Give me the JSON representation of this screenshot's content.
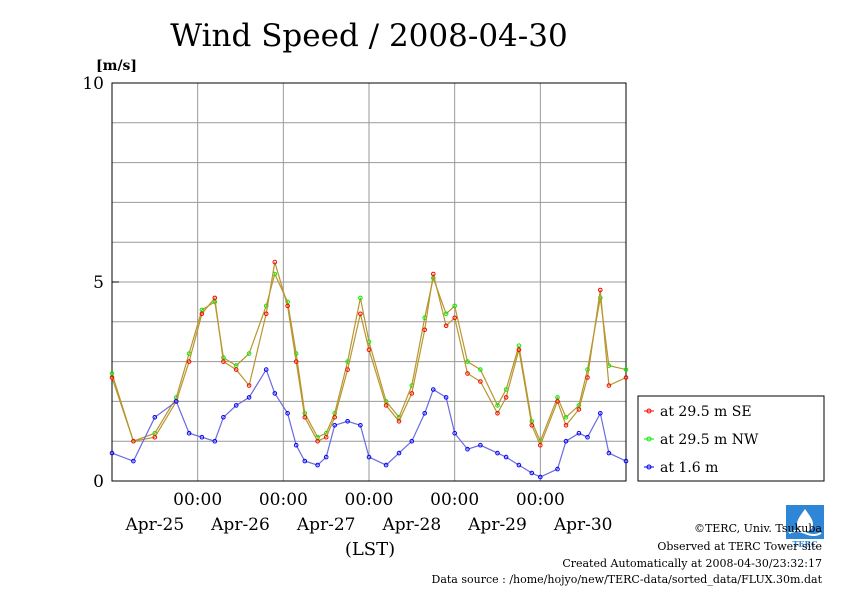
{
  "page": {
    "credit_line1": "©TERC, Univ. Tsukuba",
    "credit_line2": "Observed at TERC Tower site",
    "credit_line3": "Created Automatically at 2008-04-30/23:32:17",
    "credit_line4": "Data source : /home/hojyo/new/TERC-data/sorted_data/FLUX.30m.dat",
    "logo_text": "TERC"
  },
  "chart_data": {
    "type": "line",
    "title": "Wind Speed / 2008-04-30",
    "ylabel": "[m/s]",
    "xlabel": "(LST)",
    "ylim": [
      0,
      10
    ],
    "yticks": [
      "0",
      "5",
      "10"
    ],
    "xlim": [
      0,
      6
    ],
    "x_time_labels": [
      "00:00",
      "00:00",
      "00:00",
      "00:00",
      "00:00"
    ],
    "x_date_labels": [
      "Apr-25",
      "Apr-26",
      "Apr-27",
      "Apr-28",
      "Apr-29",
      "Apr-30"
    ],
    "grid": true,
    "legend_position": "right",
    "x_unit": "days from Apr-25 00:00 (LST)",
    "series": [
      {
        "name": "at 29.5 m SE",
        "color": "#ff0000",
        "x": [
          0,
          0.25,
          0.5,
          0.75,
          0.9,
          1.05,
          1.2,
          1.3,
          1.45,
          1.6,
          1.8,
          1.9,
          2.05,
          2.15,
          2.25,
          2.4,
          2.5,
          2.6,
          2.75,
          2.9,
          3.0,
          3.2,
          3.35,
          3.5,
          3.65,
          3.75,
          3.9,
          4.0,
          4.15,
          4.3,
          4.5,
          4.6,
          4.75,
          4.9,
          5.0,
          5.2,
          5.3,
          5.45,
          5.55,
          5.7,
          5.8,
          6.0
        ],
        "y": [
          2.6,
          1.0,
          1.1,
          2.0,
          3.0,
          4.2,
          4.6,
          3.0,
          2.8,
          2.4,
          4.2,
          5.5,
          4.4,
          3.0,
          1.6,
          1.0,
          1.1,
          1.6,
          2.8,
          4.2,
          3.3,
          1.9,
          1.5,
          2.2,
          3.8,
          5.2,
          3.9,
          4.1,
          2.7,
          2.5,
          1.7,
          2.1,
          3.3,
          1.4,
          0.9,
          2.0,
          1.4,
          1.8,
          2.6,
          4.8,
          2.4,
          2.6
        ]
      },
      {
        "name": "at 29.5 m NW",
        "color": "#00ee00",
        "x": [
          0,
          0.25,
          0.5,
          0.75,
          0.9,
          1.05,
          1.2,
          1.3,
          1.45,
          1.6,
          1.8,
          1.9,
          2.05,
          2.15,
          2.25,
          2.4,
          2.5,
          2.6,
          2.75,
          2.9,
          3.0,
          3.2,
          3.35,
          3.5,
          3.65,
          3.75,
          3.9,
          4.0,
          4.15,
          4.3,
          4.5,
          4.6,
          4.75,
          4.9,
          5.0,
          5.2,
          5.3,
          5.45,
          5.55,
          5.7,
          5.8,
          6.0
        ],
        "y": [
          2.7,
          1.0,
          1.2,
          2.1,
          3.2,
          4.3,
          4.5,
          3.1,
          2.9,
          3.2,
          4.4,
          5.2,
          4.5,
          3.2,
          1.7,
          1.1,
          1.2,
          1.7,
          3.0,
          4.6,
          3.5,
          2.0,
          1.6,
          2.4,
          4.1,
          5.1,
          4.2,
          4.4,
          3.0,
          2.8,
          1.9,
          2.3,
          3.4,
          1.5,
          1.0,
          2.1,
          1.6,
          1.9,
          2.8,
          4.6,
          2.9,
          2.8
        ]
      },
      {
        "name": "at 1.6 m",
        "color": "#0000ff",
        "x": [
          0,
          0.25,
          0.5,
          0.75,
          0.9,
          1.05,
          1.2,
          1.3,
          1.45,
          1.6,
          1.8,
          1.9,
          2.05,
          2.15,
          2.25,
          2.4,
          2.5,
          2.6,
          2.75,
          2.9,
          3.0,
          3.2,
          3.35,
          3.5,
          3.65,
          3.75,
          3.9,
          4.0,
          4.15,
          4.3,
          4.5,
          4.6,
          4.75,
          4.9,
          5.0,
          5.2,
          5.3,
          5.45,
          5.55,
          5.7,
          5.8,
          6.0
        ],
        "y": [
          0.7,
          0.5,
          1.6,
          2.0,
          1.2,
          1.1,
          1.0,
          1.6,
          1.9,
          2.1,
          2.8,
          2.2,
          1.7,
          0.9,
          0.5,
          0.4,
          0.6,
          1.4,
          1.5,
          1.4,
          0.6,
          0.4,
          0.7,
          1.0,
          1.7,
          2.3,
          2.1,
          1.2,
          0.8,
          0.9,
          0.7,
          0.6,
          0.4,
          0.2,
          0.1,
          0.3,
          1.0,
          1.2,
          1.1,
          1.7,
          0.7,
          0.5
        ]
      }
    ]
  }
}
